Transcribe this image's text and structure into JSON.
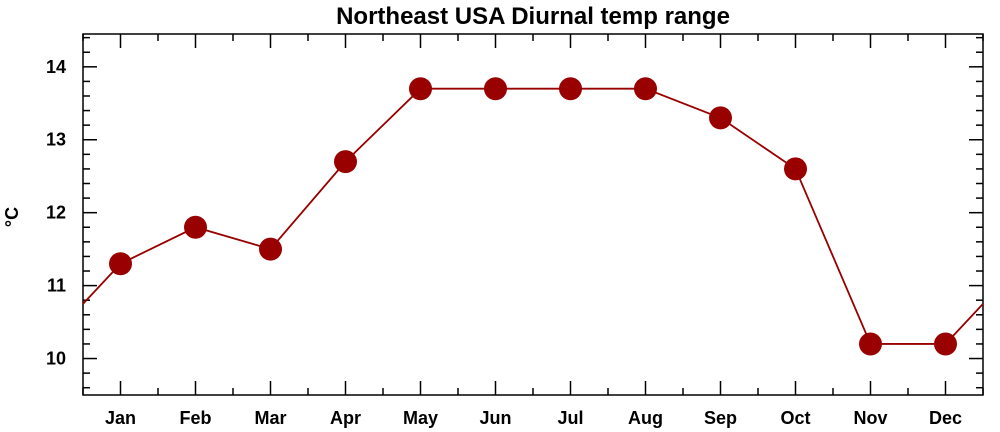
{
  "chart_data": {
    "type": "line",
    "title": "Northeast USA Diurnal temp range",
    "xlabel": "",
    "ylabel": "°C",
    "categories": [
      "Jan",
      "Feb",
      "Mar",
      "Apr",
      "May",
      "Jun",
      "Jul",
      "Aug",
      "Sep",
      "Oct",
      "Nov",
      "Dec"
    ],
    "values": [
      11.3,
      11.8,
      11.5,
      12.7,
      13.7,
      13.7,
      13.7,
      13.7,
      13.3,
      12.6,
      10.2,
      10.2
    ],
    "ylim": [
      9.5,
      14.45
    ],
    "yticks": [
      10,
      11,
      12,
      13,
      14
    ],
    "yticks_labels": [
      "10",
      "11",
      "12",
      "13",
      "14"
    ],
    "y_minor_step": 0.2,
    "grid": false,
    "legend": "none",
    "line_wraps_cyclically": true,
    "colors": {
      "series": "#990000",
      "axes": "#000000"
    }
  }
}
